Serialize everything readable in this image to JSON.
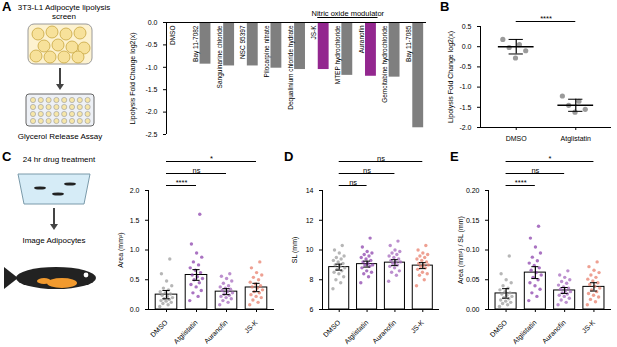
{
  "chart_data": [
    {
      "panel": "A",
      "type": "bar",
      "y_label": "Lipolysis Fold Change log2(x)",
      "categories": [
        "DMSO",
        "Bay 11-7082",
        "Sanguinarine chloride",
        "NSC 95397",
        "Pilocarpine nitrate",
        "Dequalinium chloride hydrate",
        "JS-K",
        "MTEP hydrochloride",
        "Auranofin",
        "Gemcitabine hydrochloride",
        "Bay 11-7085"
      ],
      "values": [
        0,
        -0.93,
        -0.97,
        -0.97,
        -1.02,
        -1.05,
        -1.05,
        -1.18,
        -1.2,
        -1.22,
        -2.35
      ],
      "colors": [
        "#7f7f7f",
        "#7f7f7f",
        "#7f7f7f",
        "#7f7f7f",
        "#7f7f7f",
        "#7f7f7f",
        "#93278f",
        "#7f7f7f",
        "#93278f",
        "#7f7f7f",
        "#7f7f7f"
      ],
      "ylim": [
        -2.5,
        0
      ],
      "yticks": [
        {
          "value": 0,
          "label": "0.0"
        },
        -0.5,
        {
          "value": -1,
          "label": "-1.0"
        },
        -1.5,
        {
          "value": -2,
          "label": "-2.0"
        },
        -2.5
      ],
      "annotations": [
        {
          "text": "Nitric oxide modulator",
          "from": "JS-K",
          "to": "Auranofin"
        }
      ]
    },
    {
      "panel": "B",
      "type": "dot",
      "y_label": "Lipolysis Fold Change log2(x)",
      "categories": [
        "DMSO",
        "Atglistatin"
      ],
      "points": [
        [
          0.18,
          0.05,
          -0.02,
          -0.1,
          -0.28
        ],
        [
          -1.22,
          -1.35,
          -1.45,
          -1.55,
          -1.62
        ]
      ],
      "values": [
        0,
        -1.45
      ],
      "errors": [
        0.18,
        0.15
      ],
      "colors": [
        "#7a7a7a",
        "#7a7a7a"
      ],
      "ylim": [
        -2,
        0.5
      ],
      "yticks": [
        0.5,
        {
          "value": 0,
          "label": "0.0"
        },
        -0.5,
        {
          "value": -1,
          "label": "-1.0"
        },
        -1.5,
        {
          "value": -2,
          "label": "-2.0"
        }
      ],
      "significance": [
        {
          "from": "DMSO",
          "to": "Atglistatin",
          "label": "****"
        }
      ]
    },
    {
      "panel": "C",
      "type": "bar",
      "y_label": "Area (mm²)",
      "categories": [
        "DMSO",
        "Atglistatin",
        "Auranofin",
        "JS-K"
      ],
      "points": [
        [
          0.05,
          0.08,
          0.1,
          0.12,
          0.14,
          0.15,
          0.17,
          0.18,
          0.2,
          0.22,
          0.24,
          0.26,
          0.28,
          0.3,
          0.33,
          0.36,
          0.4,
          0.48,
          0.6,
          0.85
        ],
        [
          0.15,
          0.22,
          0.28,
          0.32,
          0.38,
          0.42,
          0.45,
          0.5,
          0.52,
          0.55,
          0.58,
          0.62,
          0.66,
          0.7,
          0.75,
          0.8,
          0.88,
          0.95,
          1.1,
          1.6
        ],
        [
          0.08,
          0.12,
          0.15,
          0.18,
          0.2,
          0.22,
          0.24,
          0.26,
          0.28,
          0.3,
          0.32,
          0.34,
          0.36,
          0.38,
          0.4,
          0.44,
          0.48,
          0.52,
          0.56,
          0.6
        ],
        [
          0.08,
          0.12,
          0.16,
          0.2,
          0.22,
          0.25,
          0.28,
          0.3,
          0.33,
          0.36,
          0.38,
          0.4,
          0.43,
          0.46,
          0.5,
          0.54,
          0.58,
          0.62,
          0.7,
          0.8
        ]
      ],
      "values": [
        0.25,
        0.58,
        0.3,
        0.37
      ],
      "errors": [
        0.07,
        0.09,
        0.05,
        0.07
      ],
      "colors": [
        "#9e9e9e",
        "#8e44ad",
        "#a569bd",
        "#e8806e"
      ],
      "ylim": [
        0,
        2
      ],
      "yticks": [
        {
          "value": 0,
          "label": "0.0"
        },
        0.5,
        {
          "value": 1,
          "label": "1.0"
        },
        1.5,
        {
          "value": 2,
          "label": "2.0"
        }
      ],
      "significance": [
        {
          "from": "DMSO",
          "to": "Atglistatin",
          "label": "****"
        },
        {
          "from": "DMSO",
          "to": "Auranofin",
          "label": "ns"
        },
        {
          "from": "DMSO",
          "to": "JS-K",
          "label": "*"
        }
      ]
    },
    {
      "panel": "D",
      "type": "bar",
      "y_label": "SL (mm)",
      "categories": [
        "DMSO",
        "Atglistatin",
        "Auranofin",
        "JS-K"
      ],
      "points": [
        [
          7.4,
          7.8,
          8.0,
          8.2,
          8.4,
          8.5,
          8.6,
          8.7,
          8.8,
          8.9,
          9.0,
          9.1,
          9.2,
          9.3,
          9.4,
          9.5,
          9.6,
          9.8,
          10.0,
          10.3
        ],
        [
          7.8,
          8.2,
          8.4,
          8.5,
          8.6,
          8.8,
          8.9,
          9.0,
          9.0,
          9.1,
          9.2,
          9.3,
          9.4,
          9.5,
          9.6,
          9.7,
          9.8,
          9.9,
          10.2,
          10.8
        ],
        [
          7.9,
          8.3,
          8.5,
          8.6,
          8.8,
          8.9,
          9.0,
          9.1,
          9.2,
          9.2,
          9.3,
          9.4,
          9.5,
          9.6,
          9.7,
          9.8,
          9.9,
          10.0,
          10.3,
          10.6
        ],
        [
          7.6,
          8.0,
          8.3,
          8.4,
          8.5,
          8.7,
          8.8,
          8.9,
          9.0,
          9.0,
          9.1,
          9.2,
          9.3,
          9.4,
          9.5,
          9.6,
          9.7,
          9.8,
          10.0,
          10.3
        ]
      ],
      "values": [
        8.85,
        9.05,
        9.15,
        8.95
      ],
      "errors": [
        0.2,
        0.2,
        0.2,
        0.2
      ],
      "colors": [
        "#9e9e9e",
        "#8e44ad",
        "#a569bd",
        "#e8806e"
      ],
      "ylim": [
        6,
        14
      ],
      "yticks": [
        6,
        8,
        10,
        12,
        14
      ],
      "significance": [
        {
          "from": "DMSO",
          "to": "Atglistatin",
          "label": "ns"
        },
        {
          "from": "DMSO",
          "to": "Auranofin",
          "label": "ns"
        },
        {
          "from": "DMSO",
          "to": "JS-K",
          "label": "ns"
        }
      ]
    },
    {
      "panel": "E",
      "type": "bar",
      "y_label": "Area (mm²) / SL (mm)",
      "categories": [
        "DMSO",
        "Atglistatin",
        "Auranofin",
        "JS-K"
      ],
      "points": [
        [
          0.005,
          0.008,
          0.01,
          0.012,
          0.014,
          0.016,
          0.018,
          0.02,
          0.022,
          0.024,
          0.026,
          0.028,
          0.03,
          0.033,
          0.036,
          0.04,
          0.045,
          0.05,
          0.06,
          0.09
        ],
        [
          0.015,
          0.022,
          0.028,
          0.034,
          0.04,
          0.045,
          0.05,
          0.054,
          0.058,
          0.062,
          0.066,
          0.07,
          0.074,
          0.078,
          0.082,
          0.088,
          0.095,
          0.105,
          0.12,
          0.14
        ],
        [
          0.008,
          0.012,
          0.016,
          0.019,
          0.022,
          0.024,
          0.026,
          0.028,
          0.03,
          0.032,
          0.034,
          0.036,
          0.038,
          0.041,
          0.044,
          0.047,
          0.05,
          0.054,
          0.058,
          0.065
        ],
        [
          0.008,
          0.013,
          0.017,
          0.021,
          0.024,
          0.027,
          0.03,
          0.033,
          0.036,
          0.039,
          0.042,
          0.045,
          0.048,
          0.051,
          0.054,
          0.058,
          0.062,
          0.066,
          0.072,
          0.08
        ]
      ],
      "values": [
        0.027,
        0.062,
        0.032,
        0.038
      ],
      "errors": [
        0.008,
        0.01,
        0.005,
        0.007
      ],
      "colors": [
        "#9e9e9e",
        "#8e44ad",
        "#a569bd",
        "#e8806e"
      ],
      "ylim": [
        0,
        0.2
      ],
      "yticks": [
        {
          "value": 0,
          "label": "0.00"
        },
        0.05,
        {
          "value": 0.1,
          "label": "0.10"
        },
        0.15,
        {
          "value": 0.2,
          "label": "0.20"
        }
      ],
      "significance": [
        {
          "from": "DMSO",
          "to": "Atglistatin",
          "label": "****"
        },
        {
          "from": "DMSO",
          "to": "Auranofin",
          "label": "ns"
        },
        {
          "from": "DMSO",
          "to": "JS-K",
          "label": "*"
        }
      ]
    }
  ],
  "schematics": [
    {
      "panel": "A",
      "top_text": "3T3-L1 Adipocyte lipolysis screen",
      "bottom_text": "Glycerol Release Assay"
    },
    {
      "panel": "C",
      "top_text": "24 hr drug treatment",
      "bottom_text": "Image Adipocytes"
    }
  ]
}
